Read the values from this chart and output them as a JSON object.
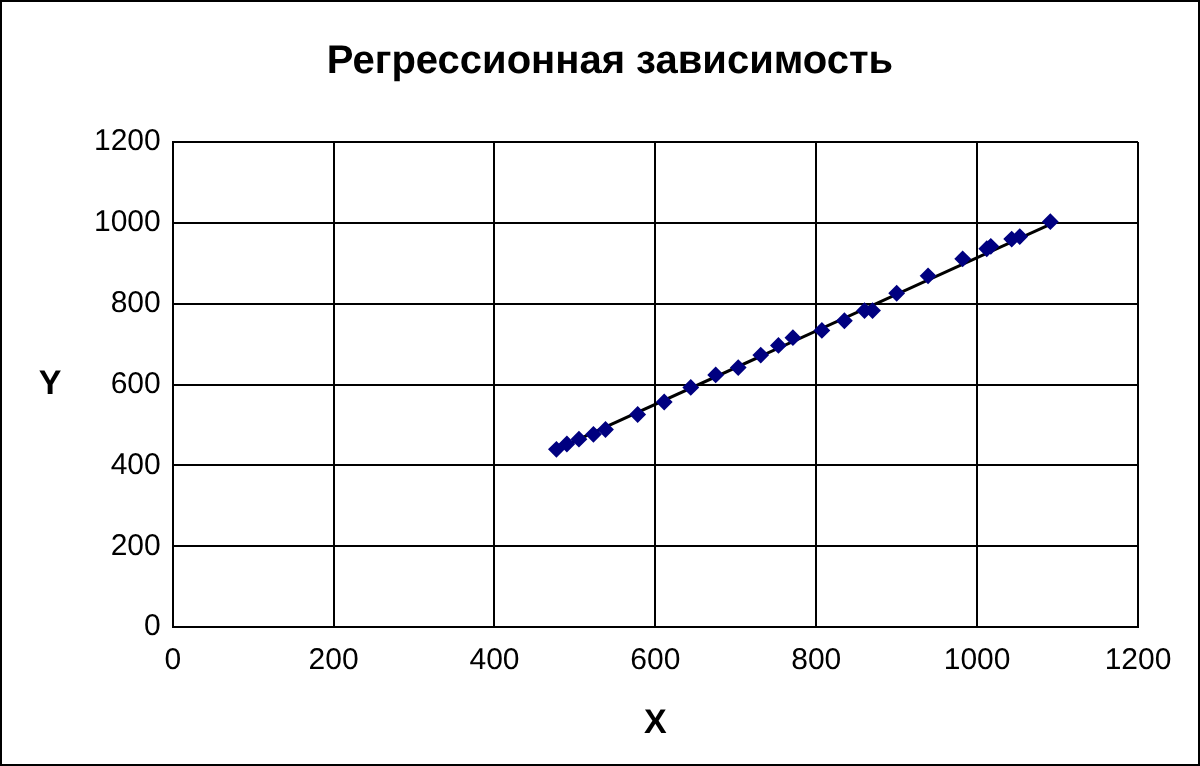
{
  "chart_data": {
    "type": "scatter",
    "title": "Регрессионная зависимость",
    "xlabel": "X",
    "ylabel": "Y",
    "xlim": [
      0,
      1200
    ],
    "xticks": [
      0,
      200,
      400,
      600,
      800,
      1000,
      1200
    ],
    "ylim": [
      0,
      1200
    ],
    "yticks": [
      0,
      200,
      400,
      600,
      800,
      1000,
      1200
    ],
    "grid": true,
    "legend": false,
    "marker": "diamond",
    "series": [
      {
        "color": "#000080",
        "x": [
          477,
          490,
          505,
          523,
          538,
          578,
          611,
          644,
          675,
          703,
          731,
          753,
          771,
          807,
          835,
          860,
          870,
          900,
          939,
          982,
          1012,
          1017,
          1043,
          1053,
          1091
        ],
        "values": [
          440,
          453,
          465,
          477,
          489,
          526,
          557,
          593,
          624,
          642,
          673,
          697,
          716,
          734,
          758,
          783,
          783,
          826,
          869,
          911,
          936,
          942,
          960,
          966,
          1003
        ]
      },
      {
        "type": "line",
        "color": "#000000",
        "line_style": "solid",
        "marker": "none",
        "x": [
          477,
          1095
        ],
        "values": [
          440,
          1000
        ]
      }
    ]
  }
}
